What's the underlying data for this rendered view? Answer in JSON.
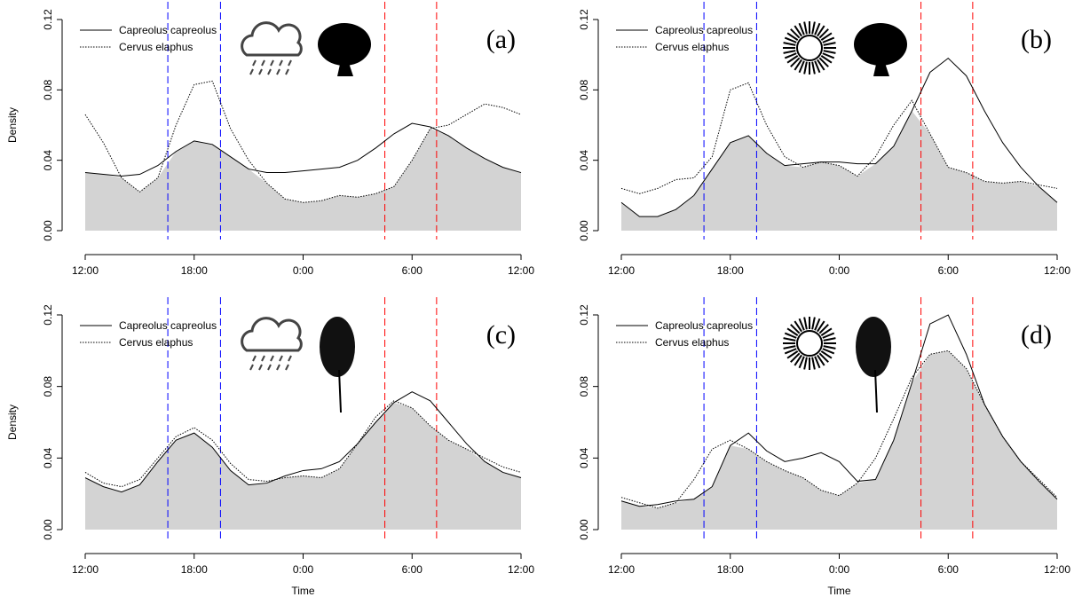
{
  "chart_data": [
    {
      "type": "line",
      "panel_label": "(a)",
      "ylabel": "Density",
      "x": [
        0,
        1,
        2,
        3,
        4,
        5,
        6,
        7,
        8,
        9,
        10,
        11,
        12,
        13,
        14,
        15,
        16,
        17,
        18,
        19,
        20,
        21,
        22,
        23,
        24
      ],
      "series": [
        {
          "name": "Capreolus capreolus",
          "color": "#000000",
          "dash": "solid",
          "values": [
            0.033,
            0.032,
            0.031,
            0.032,
            0.037,
            0.045,
            0.051,
            0.049,
            0.042,
            0.035,
            0.033,
            0.033,
            0.034,
            0.035,
            0.036,
            0.04,
            0.047,
            0.055,
            0.061,
            0.059,
            0.054,
            0.047,
            0.041,
            0.036,
            0.033
          ]
        },
        {
          "name": "Cervus elaphus",
          "color": "#000000",
          "dash": "dotted",
          "values": [
            0.066,
            0.05,
            0.03,
            0.022,
            0.03,
            0.06,
            0.083,
            0.085,
            0.058,
            0.04,
            0.027,
            0.018,
            0.016,
            0.017,
            0.02,
            0.019,
            0.021,
            0.025,
            0.04,
            0.058,
            0.06,
            0.066,
            0.072,
            0.07,
            0.066
          ]
        }
      ],
      "vlines": [
        {
          "x": 4.55,
          "color": "#0000ff"
        },
        {
          "x": 7.45,
          "color": "#0000ff"
        },
        {
          "x": 16.5,
          "color": "#ff0000"
        },
        {
          "x": 19.35,
          "color": "#ff0000"
        }
      ],
      "fill_color": "#d3d3d3",
      "xlim": [
        0,
        24
      ],
      "xticks": [
        {
          "value": 0,
          "label": "12:00"
        },
        {
          "value": 6,
          "label": "18:00"
        },
        {
          "value": 12,
          "label": "0:00"
        },
        {
          "value": 18,
          "label": "6:00"
        },
        {
          "value": 24,
          "label": "12:00"
        }
      ],
      "ylim": [
        0,
        0.12
      ],
      "yticks": [
        {
          "value": 0,
          "label": "0.00"
        },
        0.04,
        0.08,
        0.12
      ]
    },
    {
      "type": "line",
      "panel_label": "(b)",
      "x": [
        0,
        1,
        2,
        3,
        4,
        5,
        6,
        7,
        8,
        9,
        10,
        11,
        12,
        13,
        14,
        15,
        16,
        17,
        18,
        19,
        20,
        21,
        22,
        23,
        24
      ],
      "series": [
        {
          "name": "Capreolus capreolus",
          "color": "#000000",
          "dash": "solid",
          "values": [
            0.016,
            0.008,
            0.008,
            0.012,
            0.02,
            0.035,
            0.05,
            0.054,
            0.044,
            0.037,
            0.038,
            0.039,
            0.039,
            0.038,
            0.038,
            0.048,
            0.068,
            0.09,
            0.098,
            0.088,
            0.068,
            0.05,
            0.036,
            0.025,
            0.016
          ]
        },
        {
          "name": "Cervus elaphus",
          "color": "#000000",
          "dash": "dotted",
          "values": [
            0.024,
            0.021,
            0.024,
            0.029,
            0.03,
            0.042,
            0.08,
            0.084,
            0.06,
            0.042,
            0.036,
            0.039,
            0.037,
            0.031,
            0.042,
            0.06,
            0.074,
            0.055,
            0.036,
            0.033,
            0.028,
            0.027,
            0.028,
            0.026,
            0.024
          ]
        }
      ],
      "vlines": [
        {
          "x": 4.55,
          "color": "#0000ff"
        },
        {
          "x": 7.45,
          "color": "#0000ff"
        },
        {
          "x": 16.5,
          "color": "#ff0000"
        },
        {
          "x": 19.35,
          "color": "#ff0000"
        }
      ],
      "fill_color": "#d3d3d3",
      "xlim": [
        0,
        24
      ],
      "xticks": [
        {
          "value": 0,
          "label": "12:00"
        },
        {
          "value": 6,
          "label": "18:00"
        },
        {
          "value": 12,
          "label": "0:00"
        },
        {
          "value": 18,
          "label": "6:00"
        },
        {
          "value": 24,
          "label": "12:00"
        }
      ],
      "ylim": [
        0,
        0.12
      ],
      "yticks": [
        {
          "value": 0,
          "label": "0.00"
        },
        0.04,
        0.08,
        0.12
      ]
    },
    {
      "type": "line",
      "panel_label": "(c)",
      "ylabel": "Density",
      "xlabel": "Time",
      "x": [
        0,
        1,
        2,
        3,
        4,
        5,
        6,
        7,
        8,
        9,
        10,
        11,
        12,
        13,
        14,
        15,
        16,
        17,
        18,
        19,
        20,
        21,
        22,
        23,
        24
      ],
      "series": [
        {
          "name": "Capreolus capreolus",
          "color": "#000000",
          "dash": "solid",
          "values": [
            0.029,
            0.024,
            0.021,
            0.025,
            0.038,
            0.05,
            0.054,
            0.046,
            0.033,
            0.025,
            0.026,
            0.03,
            0.033,
            0.034,
            0.038,
            0.048,
            0.06,
            0.071,
            0.077,
            0.072,
            0.06,
            0.048,
            0.038,
            0.032,
            0.029
          ]
        },
        {
          "name": "Cervus elaphus",
          "color": "#000000",
          "dash": "dotted",
          "values": [
            0.032,
            0.026,
            0.024,
            0.028,
            0.04,
            0.052,
            0.057,
            0.05,
            0.037,
            0.028,
            0.027,
            0.029,
            0.03,
            0.029,
            0.034,
            0.048,
            0.063,
            0.072,
            0.068,
            0.058,
            0.05,
            0.045,
            0.04,
            0.035,
            0.032
          ]
        }
      ],
      "vlines": [
        {
          "x": 4.55,
          "color": "#0000ff"
        },
        {
          "x": 7.45,
          "color": "#0000ff"
        },
        {
          "x": 16.5,
          "color": "#ff0000"
        },
        {
          "x": 19.35,
          "color": "#ff0000"
        }
      ],
      "fill_color": "#d3d3d3",
      "xlim": [
        0,
        24
      ],
      "xticks": [
        {
          "value": 0,
          "label": "12:00"
        },
        {
          "value": 6,
          "label": "18:00"
        },
        {
          "value": 12,
          "label": "0:00"
        },
        {
          "value": 18,
          "label": "6:00"
        },
        {
          "value": 24,
          "label": "12:00"
        }
      ],
      "ylim": [
        0,
        0.12
      ],
      "yticks": [
        {
          "value": 0,
          "label": "0.00"
        },
        0.04,
        0.08,
        0.12
      ]
    },
    {
      "type": "line",
      "panel_label": "(d)",
      "xlabel": "Time",
      "x": [
        0,
        1,
        2,
        3,
        4,
        5,
        6,
        7,
        8,
        9,
        10,
        11,
        12,
        13,
        14,
        15,
        16,
        17,
        18,
        19,
        20,
        21,
        22,
        23,
        24
      ],
      "series": [
        {
          "name": "Capreolus capreolus",
          "color": "#000000",
          "dash": "solid",
          "values": [
            0.016,
            0.013,
            0.014,
            0.016,
            0.017,
            0.024,
            0.047,
            0.054,
            0.044,
            0.038,
            0.04,
            0.043,
            0.038,
            0.027,
            0.028,
            0.05,
            0.082,
            0.115,
            0.12,
            0.098,
            0.07,
            0.052,
            0.038,
            0.027,
            0.017
          ]
        },
        {
          "name": "Cervus elaphus",
          "color": "#000000",
          "dash": "dotted",
          "values": [
            0.018,
            0.015,
            0.012,
            0.015,
            0.028,
            0.045,
            0.05,
            0.045,
            0.038,
            0.033,
            0.029,
            0.022,
            0.019,
            0.026,
            0.04,
            0.062,
            0.085,
            0.098,
            0.1,
            0.09,
            0.07,
            0.052,
            0.038,
            0.028,
            0.018
          ]
        }
      ],
      "vlines": [
        {
          "x": 4.55,
          "color": "#0000ff"
        },
        {
          "x": 7.45,
          "color": "#0000ff"
        },
        {
          "x": 16.5,
          "color": "#ff0000"
        },
        {
          "x": 19.35,
          "color": "#ff0000"
        }
      ],
      "fill_color": "#d3d3d3",
      "xlim": [
        0,
        24
      ],
      "xticks": [
        {
          "value": 0,
          "label": "12:00"
        },
        {
          "value": 6,
          "label": "18:00"
        },
        {
          "value": 12,
          "label": "0:00"
        },
        {
          "value": 18,
          "label": "6:00"
        },
        {
          "value": 24,
          "label": "12:00"
        }
      ],
      "ylim": [
        0,
        0.12
      ],
      "yticks": [
        {
          "value": 0,
          "label": "0.00"
        },
        0.04,
        0.08,
        0.12
      ]
    }
  ]
}
